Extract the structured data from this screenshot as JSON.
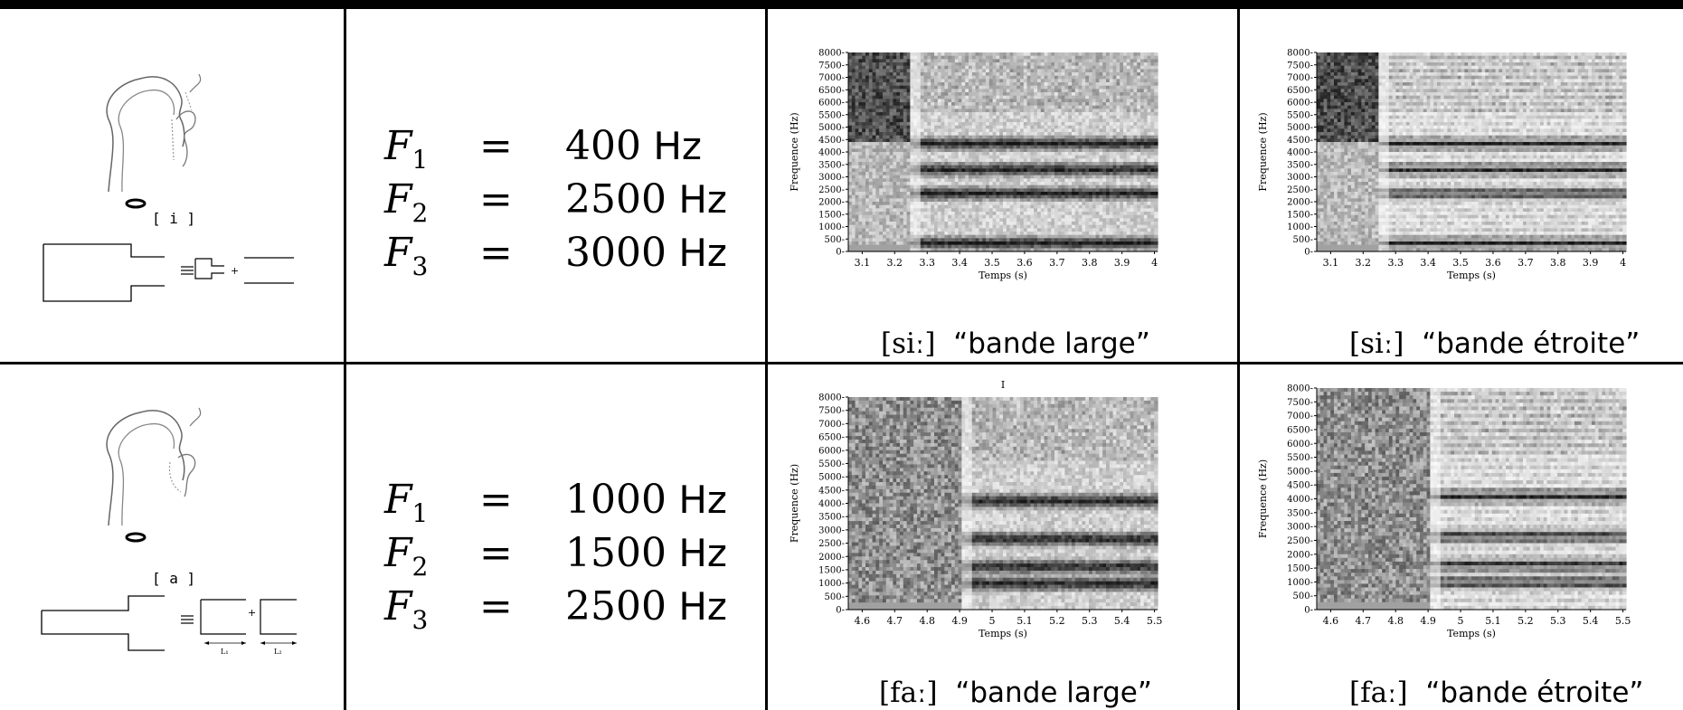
{
  "rows": [
    {
      "phoneme_label": "[ i ]",
      "formants": [
        {
          "name": "F",
          "sub": "1",
          "eq": "=",
          "value": "400",
          "unit": "Hz"
        },
        {
          "name": "F",
          "sub": "2",
          "eq": "=",
          "value": "2500",
          "unit": "Hz"
        },
        {
          "name": "F",
          "sub": "3",
          "eq": "=",
          "value": "3000",
          "unit": "Hz"
        }
      ],
      "wide": {
        "ipa": "[siː]",
        "caption": "“bande large”",
        "ylabel": "Frequence (Hz)",
        "xlabel": "Temps (s)",
        "yticks": [
          "8000",
          "7500",
          "7000",
          "6500",
          "6000",
          "5500",
          "5000",
          "4500",
          "4000",
          "3500",
          "3000",
          "2500",
          "2000",
          "1500",
          "1000",
          "500",
          "0"
        ],
        "xticks": [
          "3.1",
          "3.2",
          "3.3",
          "3.4",
          "3.5",
          "3.6",
          "3.7",
          "3.8",
          "3.9",
          "4"
        ],
        "title": ""
      },
      "narrow": {
        "ipa": "[siː]",
        "caption": "“bande étroite”",
        "ylabel": "Frequence (Hz)",
        "xlabel": "Temps (s)",
        "yticks": [
          "8000",
          "7500",
          "7000",
          "6500",
          "6000",
          "5500",
          "5000",
          "4500",
          "4000",
          "3500",
          "3000",
          "2500",
          "2000",
          "1500",
          "1000",
          "500",
          "0"
        ],
        "xticks": [
          "3.1",
          "3.2",
          "3.3",
          "3.4",
          "3.5",
          "3.6",
          "3.7",
          "3.8",
          "3.9",
          "4"
        ]
      }
    },
    {
      "phoneme_label": "[ a ]",
      "tube_labels": [
        "L₁",
        "L₂"
      ],
      "formants": [
        {
          "name": "F",
          "sub": "1",
          "eq": "=",
          "value": "1000",
          "unit": "Hz"
        },
        {
          "name": "F",
          "sub": "2",
          "eq": "=",
          "value": "1500",
          "unit": "Hz"
        },
        {
          "name": "F",
          "sub": "3",
          "eq": "=",
          "value": "2500",
          "unit": "Hz"
        }
      ],
      "wide": {
        "ipa": "[faː]",
        "caption": "“bande large”",
        "ylabel": "Frequence (Hz)",
        "xlabel": "Temps (s)",
        "yticks": [
          "8000",
          "7500",
          "7000",
          "6500",
          "6000",
          "5500",
          "5000",
          "4500",
          "4000",
          "3500",
          "3000",
          "2500",
          "2000",
          "1500",
          "1000",
          "500",
          "0"
        ],
        "xticks": [
          "4.6",
          "4.7",
          "4.8",
          "4.9",
          "5",
          "5.1",
          "5.2",
          "5.3",
          "5.4",
          "5.5"
        ],
        "title": "I"
      },
      "narrow": {
        "ipa": "[faː]",
        "caption": "“bande étroite”",
        "ylabel": "Frequence (Hz)",
        "xlabel": "Temps (s)",
        "yticks": [
          "8000",
          "7500",
          "7000",
          "6500",
          "6000",
          "5500",
          "5000",
          "4500",
          "4000",
          "3500",
          "3000",
          "2500",
          "2000",
          "1500",
          "1000",
          "500",
          "0"
        ],
        "xticks": [
          "4.6",
          "4.7",
          "4.8",
          "4.9",
          "5",
          "5.1",
          "5.2",
          "5.3",
          "5.4",
          "5.5"
        ]
      }
    }
  ]
}
